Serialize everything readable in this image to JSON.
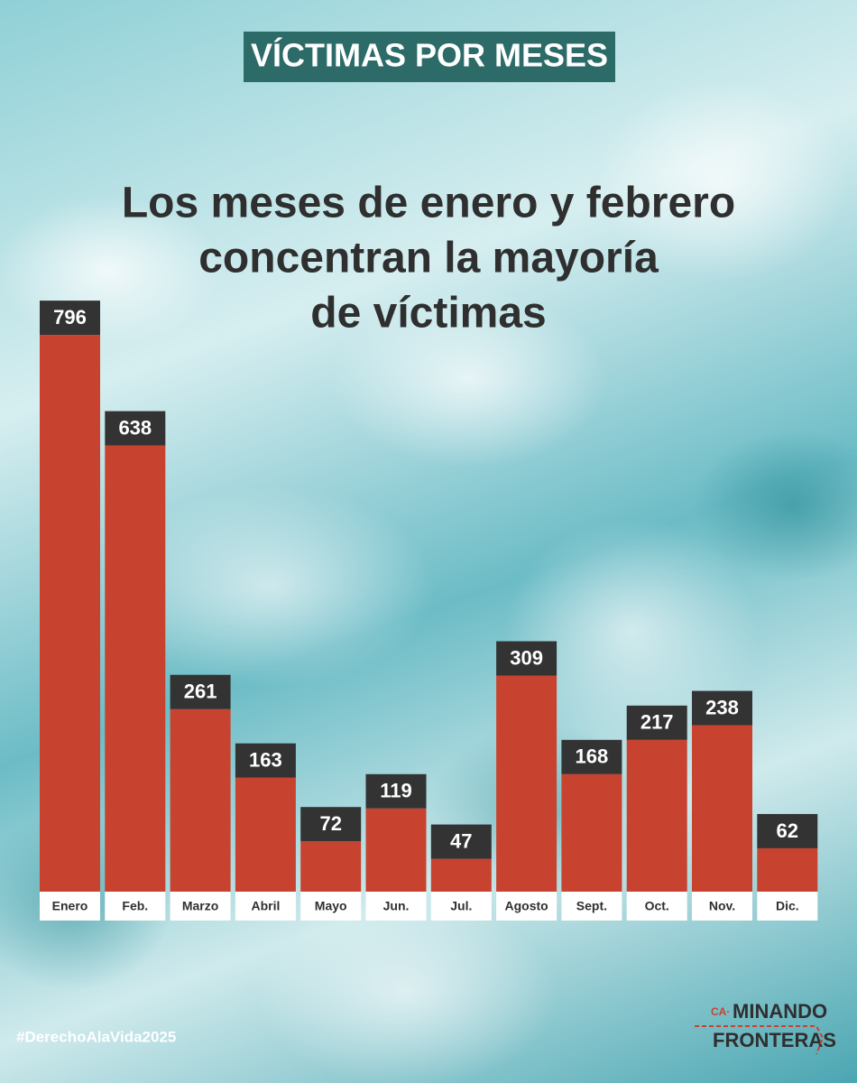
{
  "chart_data": {
    "type": "bar",
    "title": "VÍCTIMAS POR MESES",
    "subtitle": [
      "Los meses de enero y febrero",
      "concentran la mayoría",
      "de víctimas"
    ],
    "categories": [
      "Enero",
      "Feb.",
      "Marzo",
      "Abril",
      "Mayo",
      "Jun.",
      "Jul.",
      "Agosto",
      "Sept.",
      "Oct.",
      "Nov.",
      "Dic."
    ],
    "values": [
      796,
      638,
      261,
      163,
      72,
      119,
      47,
      309,
      168,
      217,
      238,
      62
    ],
    "color": "#c8432f"
  },
  "footer": {
    "hashtag": "#DerechoAlaVida2025",
    "logo_prefix": "CA·",
    "logo_line1": "MINANDO",
    "logo_line2": "FRONTERAS"
  }
}
